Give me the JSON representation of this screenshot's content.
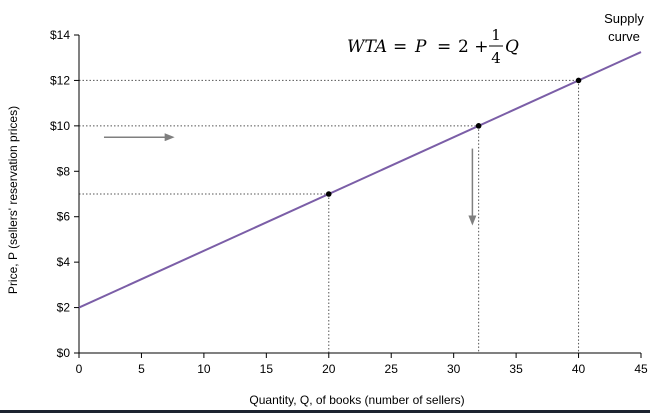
{
  "chart_data": {
    "type": "line",
    "title": "",
    "xlabel": "Quantity, Q, of books (number of sellers)",
    "ylabel": "Price, P (sellers' reservation prices)",
    "xlim": [
      0,
      45
    ],
    "ylim": [
      0,
      14
    ],
    "x_ticks": [
      0,
      5,
      10,
      15,
      20,
      25,
      30,
      35,
      40,
      45
    ],
    "y_ticks": [
      0,
      2,
      4,
      6,
      8,
      10,
      12,
      14
    ],
    "x_tick_labels": [
      "0",
      "5",
      "10",
      "15",
      "20",
      "25",
      "30",
      "35",
      "40",
      "45"
    ],
    "y_tick_labels": [
      "$0",
      "$2",
      "$4",
      "$6",
      "$8",
      "$10",
      "$12",
      "$14"
    ],
    "grid": false,
    "series": [
      {
        "name": "Supply curve",
        "color": "#7b5ea7",
        "x": [
          0,
          45
        ],
        "y": [
          2,
          13.25
        ]
      }
    ],
    "points": [
      {
        "x": 20,
        "y": 7
      },
      {
        "x": 32,
        "y": 10
      },
      {
        "x": 40,
        "y": 12
      }
    ],
    "reference_lines": [
      {
        "x": 20,
        "y": 7
      },
      {
        "x": 32,
        "y": 10
      },
      {
        "x": 40,
        "y": 12
      }
    ],
    "annotations": {
      "equation": {
        "lhs": "WTA",
        "eq1": "=",
        "p": "P",
        "eq2": "=",
        "constant": "2 +",
        "numerator": "1",
        "denominator": "4",
        "variable": "Q"
      },
      "supply_label_line1": "Supply",
      "supply_label_line2": "curve"
    },
    "arrows": [
      {
        "direction": "right",
        "from": [
          2,
          9.5
        ],
        "to": [
          7.5,
          9.5
        ]
      },
      {
        "direction": "down",
        "from": [
          31.5,
          9
        ],
        "to": [
          31.5,
          5.7
        ]
      }
    ],
    "colors": {
      "line": "#7b5ea7",
      "arrow": "#7f7f7f",
      "axis": "#000000",
      "reference": "#555555"
    }
  }
}
